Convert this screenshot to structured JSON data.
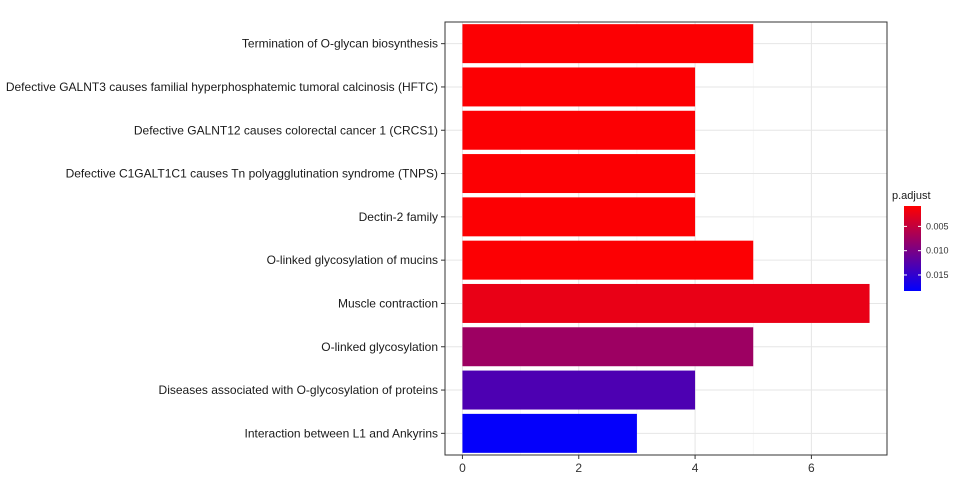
{
  "chart_data": {
    "type": "bar",
    "orientation": "horizontal",
    "categories": [
      "Termination of O-glycan biosynthesis",
      "Defective GALNT3 causes familial hyperphosphatemic tumoral calcinosis (HFTC)",
      "Defective GALNT12 causes colorectal cancer 1 (CRCS1)",
      "Defective C1GALT1C1 causes Tn polyagglutination syndrome (TNPS)",
      "Dectin-2 family",
      "O-linked glycosylation of mucins",
      "Muscle contraction",
      "O-linked glycosylation",
      "Diseases associated with O-glycosylation of proteins",
      "Interaction between L1 and Ankyrins"
    ],
    "values": [
      5,
      4,
      4,
      4,
      4,
      5,
      7,
      5,
      4,
      3
    ],
    "p_adjust": [
      0.001,
      0.001,
      0.001,
      0.001,
      0.001,
      0.001,
      0.0023,
      0.0075,
      0.013,
      0.018
    ],
    "xlim": [
      -0.3,
      7.3
    ],
    "x_ticks": [
      "0",
      "2",
      "4",
      "6"
    ],
    "x_tick_values": [
      0,
      2,
      4,
      6
    ],
    "grid": true,
    "legend": {
      "title": "p.adjust",
      "placement": "right",
      "ticks": [
        "0.005",
        "0.010",
        "0.015"
      ],
      "tick_values": [
        0.005,
        0.01,
        0.015
      ],
      "range": [
        0.0008,
        0.0183
      ],
      "color_low": "#FF0000",
      "color_high": "#0000FF"
    }
  }
}
